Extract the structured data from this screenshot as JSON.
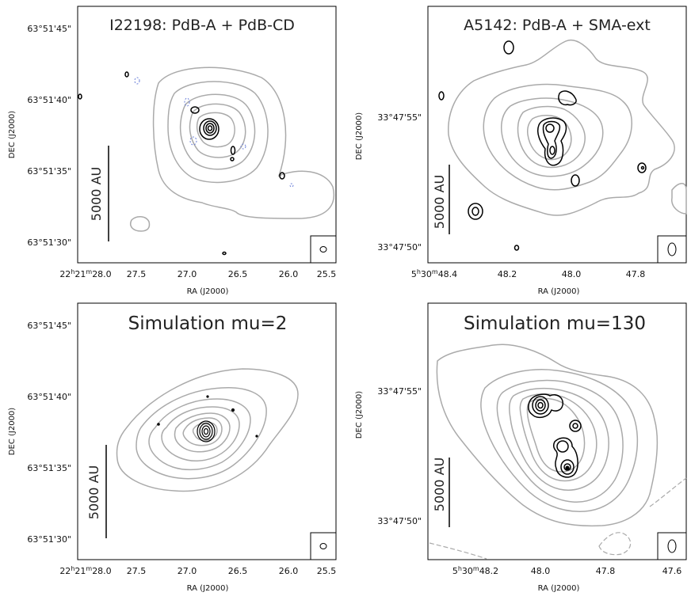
{
  "chart_data": [
    {
      "type": "contour",
      "title": "I22198: PdB-A + PdB-CD",
      "xlabel": "RA (J2000)",
      "ylabel": "DEC (J2000)",
      "x_ticks": {
        "prefix": "22h21m",
        "labels": [
          "28.0",
          "27.5",
          "27.0",
          "26.5",
          "26.0",
          "25.5"
        ],
        "values": [
          28.0,
          27.5,
          27.0,
          26.5,
          26.0,
          25.5
        ]
      },
      "y_ticks": [
        "63°51'45\"",
        "63°51'40\"",
        "63°51'35\"",
        "63°51'30\""
      ],
      "scale_bar": "5000 AU",
      "gray_contours": 5,
      "black_contours": 4,
      "beam": "circle"
    },
    {
      "type": "contour",
      "title": "A5142: PdB-A + SMA-ext",
      "xlabel": "RA (J2000)",
      "ylabel": "DEC (J2000)",
      "x_ticks": {
        "prefix": "5h30m",
        "labels": [
          "48.4",
          "48.2",
          "48.0",
          "47.8"
        ],
        "values": [
          48.4,
          48.2,
          48.0,
          47.8
        ]
      },
      "y_ticks": [
        "33°47'55\"",
        "33°47'50\""
      ],
      "scale_bar": "5000 AU",
      "gray_contours": 5,
      "black_contours": 4,
      "beam": "ellipse"
    },
    {
      "type": "contour",
      "title": "Simulation mu=2",
      "xlabel": "RA (J2000)",
      "ylabel": "DEC (J2000)",
      "x_ticks": {
        "prefix": "22h21m",
        "labels": [
          "28.0",
          "27.5",
          "27.0",
          "26.5",
          "26.0",
          "25.5"
        ],
        "values": [
          28.0,
          27.5,
          27.0,
          26.5,
          26.0,
          25.5
        ]
      },
      "y_ticks": [
        "63°51'45\"",
        "63°51'40\"",
        "63°51'35\"",
        "63°51'30\""
      ],
      "scale_bar": "5000 AU",
      "gray_contours": 7,
      "black_contours": 4,
      "beam": "circle"
    },
    {
      "type": "contour",
      "title": "Simulation mu=130",
      "xlabel": "RA (J2000)",
      "ylabel": "DEC (J2000)",
      "x_ticks": {
        "prefix": "5h30m",
        "labels": [
          "48.2",
          "48.0",
          "47.8",
          "47.6"
        ],
        "values": [
          48.2,
          48.0,
          47.8,
          47.6
        ]
      },
      "y_ticks": [
        "33°47'55\"",
        "33°47'50\""
      ],
      "scale_bar": "5000 AU",
      "gray_contours": 6,
      "black_contours": 4,
      "beam": "ellipse"
    }
  ]
}
